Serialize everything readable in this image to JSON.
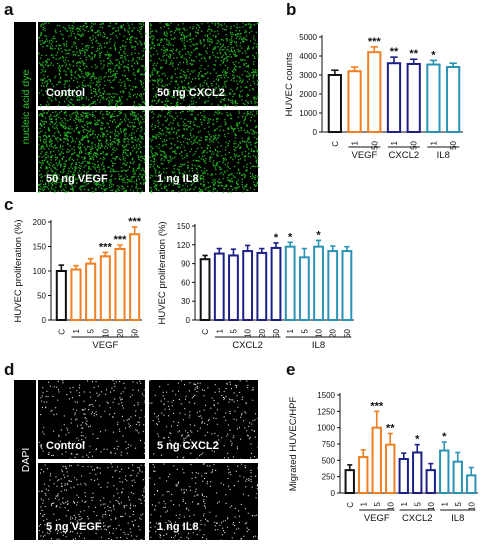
{
  "colors": {
    "control": "#111111",
    "vegf": "#f07f22",
    "cxcl2": "#1c1f86",
    "il8": "#2a93b5",
    "dye_green": "#26c926",
    "dapi_white": "#f2f2f2"
  },
  "panels": {
    "a": {
      "letter": "a",
      "side_label": "nucleic acid dye",
      "images": [
        "Control",
        "50 ng CXCL2",
        "50 ng VEGF",
        "1 ng IL8"
      ]
    },
    "d": {
      "letter": "d",
      "side_label": "DAPI",
      "images": [
        "Control",
        "5 ng CXCL2",
        "5 ng VEGF",
        "1 ng IL8"
      ]
    }
  },
  "chart_data": [
    {
      "id": "b",
      "letter": "b",
      "type": "bar",
      "ylabel": "HUVEC counts",
      "ylim": [
        0,
        5000
      ],
      "yticks": [
        0,
        1000,
        2000,
        3000,
        4000,
        5000
      ],
      "categories": [
        "C",
        "1",
        "50",
        "1",
        "50",
        "1",
        "50"
      ],
      "groups": [
        {
          "name": "VEGF",
          "from": 1,
          "to": 2,
          "color": "vegf"
        },
        {
          "name": "CXCL2",
          "from": 3,
          "to": 4,
          "color": "cxcl2"
        },
        {
          "name": "IL8",
          "from": 5,
          "to": 6,
          "color": "il8"
        }
      ],
      "bars": [
        {
          "value": 3000,
          "err": 250,
          "color": "control",
          "sig": ""
        },
        {
          "value": 3200,
          "err": 220,
          "color": "vegf",
          "sig": ""
        },
        {
          "value": 4200,
          "err": 280,
          "color": "vegf",
          "sig": "***"
        },
        {
          "value": 3620,
          "err": 320,
          "color": "cxcl2",
          "sig": "**"
        },
        {
          "value": 3580,
          "err": 250,
          "color": "cxcl2",
          "sig": "**"
        },
        {
          "value": 3550,
          "err": 220,
          "color": "il8",
          "sig": "*"
        },
        {
          "value": 3420,
          "err": 200,
          "color": "il8",
          "sig": ""
        }
      ]
    },
    {
      "id": "c1",
      "letter": "c",
      "type": "bar",
      "ylabel": "HUVEC proliferation (%)",
      "ylim": [
        0,
        200
      ],
      "yticks": [
        0,
        50,
        100,
        150,
        200
      ],
      "categories": [
        "C",
        "1",
        "5",
        "10",
        "20",
        "50"
      ],
      "groups": [
        {
          "name": "VEGF",
          "from": 1,
          "to": 5,
          "color": "vegf"
        }
      ],
      "bars": [
        {
          "value": 100,
          "err": 12,
          "color": "control",
          "sig": ""
        },
        {
          "value": 103,
          "err": 8,
          "color": "vegf",
          "sig": ""
        },
        {
          "value": 115,
          "err": 10,
          "color": "vegf",
          "sig": ""
        },
        {
          "value": 130,
          "err": 8,
          "color": "vegf",
          "sig": "***"
        },
        {
          "value": 145,
          "err": 8,
          "color": "vegf",
          "sig": "***"
        },
        {
          "value": 175,
          "err": 15,
          "color": "vegf",
          "sig": "***"
        }
      ]
    },
    {
      "id": "c2",
      "letter": "",
      "type": "bar",
      "ylabel": "HUVEC proliferation (%)",
      "ylim": [
        0,
        150
      ],
      "yticks": [
        0,
        30,
        60,
        90,
        120,
        150
      ],
      "categories": [
        "C",
        "1",
        "5",
        "10",
        "20",
        "50",
        "1",
        "5",
        "10",
        "20",
        "50"
      ],
      "groups": [
        {
          "name": "CXCL2",
          "from": 1,
          "to": 5,
          "color": "cxcl2"
        },
        {
          "name": "IL8",
          "from": 6,
          "to": 10,
          "color": "il8"
        }
      ],
      "bars": [
        {
          "value": 97,
          "err": 6,
          "color": "control",
          "sig": ""
        },
        {
          "value": 106,
          "err": 8,
          "color": "cxcl2",
          "sig": ""
        },
        {
          "value": 103,
          "err": 10,
          "color": "cxcl2",
          "sig": ""
        },
        {
          "value": 110,
          "err": 9,
          "color": "cxcl2",
          "sig": ""
        },
        {
          "value": 107,
          "err": 7,
          "color": "cxcl2",
          "sig": ""
        },
        {
          "value": 115,
          "err": 8,
          "color": "cxcl2",
          "sig": "*"
        },
        {
          "value": 117,
          "err": 7,
          "color": "il8",
          "sig": "*"
        },
        {
          "value": 100,
          "err": 14,
          "color": "il8",
          "sig": ""
        },
        {
          "value": 117,
          "err": 10,
          "color": "il8",
          "sig": "*"
        },
        {
          "value": 110,
          "err": 8,
          "color": "il8",
          "sig": ""
        },
        {
          "value": 110,
          "err": 7,
          "color": "il8",
          "sig": ""
        }
      ]
    },
    {
      "id": "e",
      "letter": "e",
      "type": "bar",
      "ylabel": "Migrated HUVEC/HPF",
      "ylim": [
        0,
        1500
      ],
      "yticks": [
        0,
        250,
        500,
        750,
        1000,
        1250,
        1500
      ],
      "categories": [
        "C",
        "1",
        "5",
        "10",
        "1",
        "5",
        "10",
        "1",
        "5",
        "10"
      ],
      "groups": [
        {
          "name": "VEGF",
          "from": 1,
          "to": 3,
          "color": "vegf"
        },
        {
          "name": "CXCL2",
          "from": 4,
          "to": 6,
          "color": "cxcl2"
        },
        {
          "name": "IL8",
          "from": 7,
          "to": 9,
          "color": "il8"
        }
      ],
      "bars": [
        {
          "value": 350,
          "err": 80,
          "color": "control",
          "sig": ""
        },
        {
          "value": 550,
          "err": 110,
          "color": "vegf",
          "sig": ""
        },
        {
          "value": 1000,
          "err": 250,
          "color": "vegf",
          "sig": "***"
        },
        {
          "value": 740,
          "err": 170,
          "color": "vegf",
          "sig": "**"
        },
        {
          "value": 520,
          "err": 90,
          "color": "cxcl2",
          "sig": ""
        },
        {
          "value": 620,
          "err": 120,
          "color": "cxcl2",
          "sig": "*"
        },
        {
          "value": 350,
          "err": 100,
          "color": "cxcl2",
          "sig": ""
        },
        {
          "value": 650,
          "err": 130,
          "color": "il8",
          "sig": "*"
        },
        {
          "value": 480,
          "err": 140,
          "color": "il8",
          "sig": ""
        },
        {
          "value": 270,
          "err": 120,
          "color": "il8",
          "sig": ""
        }
      ]
    }
  ]
}
